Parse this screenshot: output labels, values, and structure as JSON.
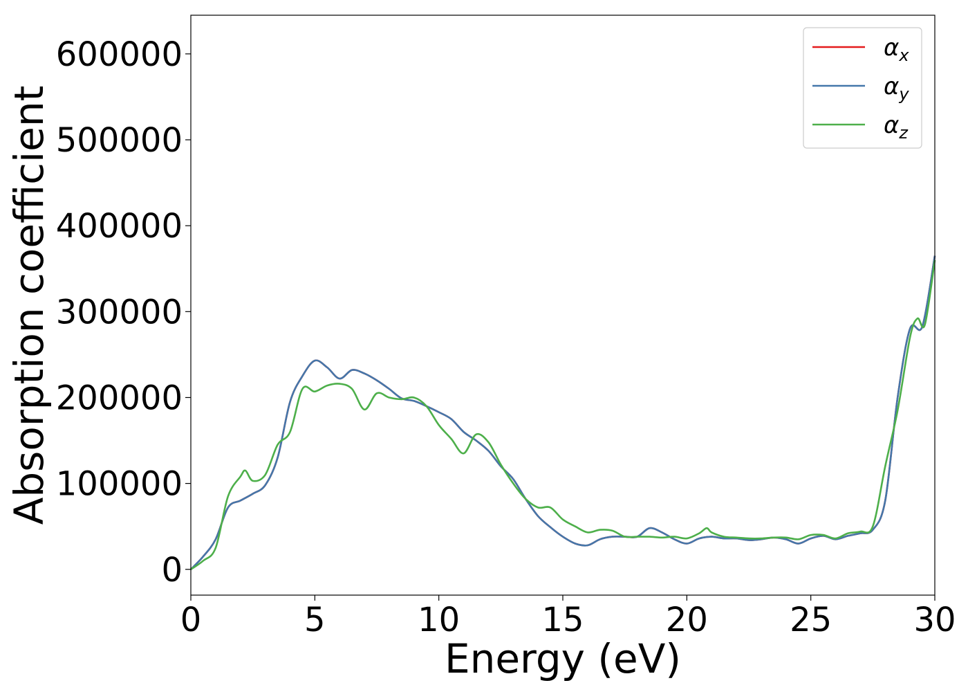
{
  "chart_data": {
    "type": "line",
    "title": "",
    "xlabel": "Energy (eV)",
    "ylabel": "Absorption coefficient",
    "xlim": [
      0,
      30
    ],
    "ylim": [
      -30000,
      645000
    ],
    "xticks": [
      0,
      5,
      10,
      15,
      20,
      25,
      30
    ],
    "xtick_labels": [
      "0",
      "5",
      "10",
      "15",
      "20",
      "25",
      "30"
    ],
    "yticks": [
      0,
      100000,
      200000,
      300000,
      400000,
      500000,
      600000
    ],
    "ytick_labels": [
      "0",
      "100000",
      "200000",
      "300000",
      "400000",
      "500000",
      "600000"
    ],
    "grid": false,
    "legend_position": "top-right",
    "series": [
      {
        "name": "α",
        "subscript": "x",
        "color": "#e41a1c",
        "x": [
          0,
          0.5,
          1.0,
          1.5,
          2.0,
          2.5,
          3.0,
          3.5,
          4.0,
          4.5,
          5.0,
          5.5,
          6.0,
          6.5,
          7.0,
          7.5,
          8.0,
          8.5,
          9.0,
          9.5,
          10.0,
          10.5,
          11.0,
          11.5,
          12.0,
          12.5,
          13.0,
          13.5,
          14.0,
          14.5,
          15.0,
          15.5,
          16.0,
          16.5,
          17.0,
          17.5,
          18.0,
          18.5,
          19.0,
          19.5,
          20.0,
          20.5,
          21.0,
          21.5,
          22.0,
          22.5,
          23.0,
          23.5,
          24.0,
          24.5,
          25.0,
          25.5,
          26.0,
          26.5,
          27.0,
          27.5,
          28.0,
          28.5,
          29.0,
          29.5,
          30.0
        ],
        "values": [
          0,
          15000,
          35000,
          72000,
          80000,
          88000,
          98000,
          130000,
          195000,
          225000,
          243000,
          235000,
          222000,
          232000,
          228000,
          220000,
          210000,
          199000,
          196000,
          190000,
          183000,
          175000,
          160000,
          150000,
          138000,
          120000,
          105000,
          82000,
          62000,
          49000,
          38000,
          30000,
          28000,
          35000,
          38000,
          38000,
          38000,
          48000,
          43000,
          35000,
          30000,
          36000,
          38000,
          36000,
          36000,
          34000,
          35000,
          37000,
          35000,
          30000,
          36000,
          39000,
          35000,
          39000,
          42000,
          46000,
          80000,
          200000,
          280000,
          283000,
          365000
        ]
      },
      {
        "name": "α",
        "subscript": "y",
        "color": "#4477aa",
        "x": [
          0,
          0.5,
          1.0,
          1.5,
          2.0,
          2.5,
          3.0,
          3.5,
          4.0,
          4.5,
          5.0,
          5.5,
          6.0,
          6.5,
          7.0,
          7.5,
          8.0,
          8.5,
          9.0,
          9.5,
          10.0,
          10.5,
          11.0,
          11.5,
          12.0,
          12.5,
          13.0,
          13.5,
          14.0,
          14.5,
          15.0,
          15.5,
          16.0,
          16.5,
          17.0,
          17.5,
          18.0,
          18.5,
          19.0,
          19.5,
          20.0,
          20.5,
          21.0,
          21.5,
          22.0,
          22.5,
          23.0,
          23.5,
          24.0,
          24.5,
          25.0,
          25.5,
          26.0,
          26.5,
          27.0,
          27.5,
          28.0,
          28.5,
          29.0,
          29.5,
          30.0
        ],
        "values": [
          0,
          15000,
          35000,
          72000,
          80000,
          88000,
          98000,
          130000,
          195000,
          225000,
          243000,
          235000,
          222000,
          232000,
          228000,
          220000,
          210000,
          199000,
          196000,
          190000,
          183000,
          175000,
          160000,
          150000,
          138000,
          120000,
          105000,
          82000,
          62000,
          49000,
          38000,
          30000,
          28000,
          35000,
          38000,
          38000,
          38000,
          48000,
          43000,
          35000,
          30000,
          36000,
          38000,
          36000,
          36000,
          34000,
          35000,
          37000,
          35000,
          30000,
          36000,
          39000,
          35000,
          39000,
          42000,
          46000,
          80000,
          200000,
          280000,
          283000,
          365000
        ]
      },
      {
        "name": "α",
        "subscript": "z",
        "color": "#4daf4a",
        "x": [
          0,
          0.5,
          1.0,
          1.5,
          2.0,
          2.2,
          2.5,
          3.0,
          3.5,
          4.0,
          4.5,
          5.0,
          5.5,
          6.0,
          6.5,
          7.0,
          7.5,
          8.0,
          8.5,
          9.0,
          9.5,
          10.0,
          10.5,
          11.0,
          11.5,
          12.0,
          12.5,
          13.0,
          13.5,
          14.0,
          14.5,
          15.0,
          15.5,
          16.0,
          16.5,
          17.0,
          17.5,
          18.0,
          18.5,
          19.0,
          19.5,
          20.0,
          20.5,
          20.8,
          21.0,
          21.5,
          22.0,
          22.5,
          23.0,
          23.5,
          24.0,
          24.5,
          25.0,
          25.5,
          26.0,
          26.5,
          27.0,
          27.5,
          28.0,
          28.5,
          29.0,
          29.3,
          29.6,
          30.0
        ],
        "values": [
          0,
          10000,
          25000,
          85000,
          108000,
          115000,
          103000,
          110000,
          145000,
          160000,
          210000,
          207000,
          214000,
          216000,
          210000,
          186000,
          205000,
          200000,
          198000,
          200000,
          190000,
          168000,
          152000,
          135000,
          157000,
          148000,
          122000,
          100000,
          82000,
          72000,
          72000,
          58000,
          50000,
          43000,
          46000,
          45000,
          38000,
          38000,
          38000,
          37000,
          38000,
          36000,
          42000,
          48000,
          43000,
          38000,
          37000,
          36000,
          36000,
          37000,
          37000,
          35000,
          40000,
          40000,
          36000,
          42000,
          44000,
          50000,
          120000,
          185000,
          270000,
          292000,
          285000,
          360000
        ]
      }
    ]
  }
}
